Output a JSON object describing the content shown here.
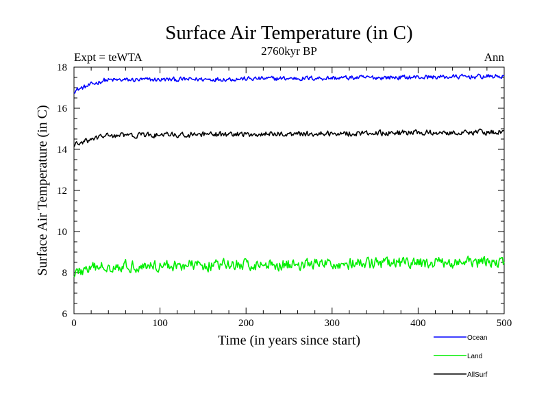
{
  "chart_data": {
    "type": "line",
    "title": "Surface Air Temperature (in C)",
    "subtitle": "2760kyr BP",
    "left_label": "Expt = teWTA",
    "right_label": "Ann",
    "xlabel": "Time (in years since start)",
    "ylabel": "Surface Air Temperature (in C)",
    "xlim": [
      0,
      500
    ],
    "ylim": [
      6,
      18
    ],
    "x_ticks": [
      0,
      100,
      200,
      300,
      400,
      500
    ],
    "y_ticks": [
      6,
      8,
      10,
      12,
      14,
      16,
      18
    ],
    "x_tick_labels": [
      "0",
      "100",
      "200",
      "300",
      "400",
      "500"
    ],
    "y_tick_labels": [
      "6",
      "8",
      "10",
      "12",
      "14",
      "16",
      "18"
    ],
    "series": [
      {
        "name": "Ocean",
        "color": "#0000ff",
        "start": 16.85,
        "mean": 17.35,
        "trend_per_500yr": 0.2,
        "noise_amplitude": 0.1
      },
      {
        "name": "Land",
        "color": "#00ee00",
        "start": 8.0,
        "mean": 8.3,
        "trend_per_500yr": 0.2,
        "noise_amplitude": 0.25
      },
      {
        "name": "AllSurf",
        "color": "#000000",
        "start": 14.2,
        "mean": 14.65,
        "trend_per_500yr": 0.2,
        "noise_amplitude": 0.12
      }
    ]
  }
}
